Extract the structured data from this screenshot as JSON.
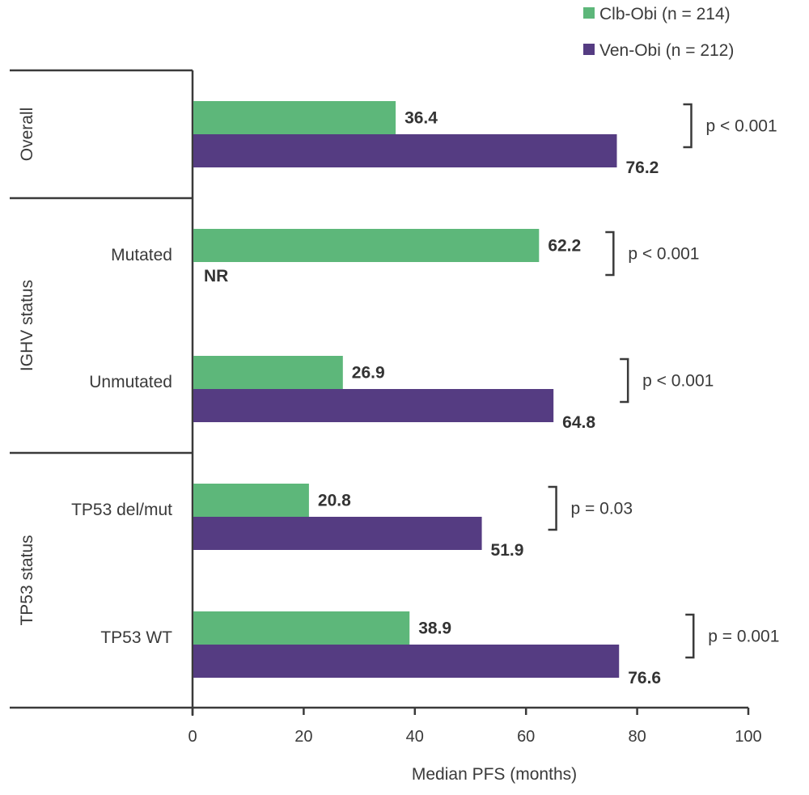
{
  "chart_data": {
    "type": "bar",
    "orientation": "horizontal",
    "title": "",
    "xlabel": "Median PFS (months)",
    "ylabel": "",
    "xlim": [
      0,
      100
    ],
    "xticks": [
      0,
      20,
      40,
      60,
      80,
      100
    ],
    "grid": false,
    "legend_position": "top-right",
    "series": [
      {
        "name": "Clb-Obi (n = 214)",
        "color": "#5db77a"
      },
      {
        "name": "Ven-Obi (n = 212)",
        "color": "#553c82"
      }
    ],
    "groups": [
      {
        "label": "Overall",
        "rows": [
          {
            "category": "",
            "values": [
              36.4,
              76.2
            ],
            "labels": [
              "36.4",
              "76.2"
            ],
            "p_value": "p < 0.001"
          }
        ]
      },
      {
        "label": "IGHV status",
        "rows": [
          {
            "category": "Mutated",
            "values": [
              62.2,
              null
            ],
            "labels": [
              "62.2",
              "NR"
            ],
            "p_value": "p < 0.001"
          },
          {
            "category": "Unmutated",
            "values": [
              26.9,
              64.8
            ],
            "labels": [
              "26.9",
              "64.8"
            ],
            "p_value": "p < 0.001"
          }
        ]
      },
      {
        "label": "TP53 status",
        "rows": [
          {
            "category": "TP53 del/mut",
            "values": [
              20.8,
              51.9
            ],
            "labels": [
              "20.8",
              "51.9"
            ],
            "p_value": "p = 0.03"
          },
          {
            "category": "TP53 WT",
            "values": [
              38.9,
              76.6
            ],
            "labels": [
              "38.9",
              "76.6"
            ],
            "p_value": "p = 0.001"
          }
        ]
      }
    ]
  }
}
